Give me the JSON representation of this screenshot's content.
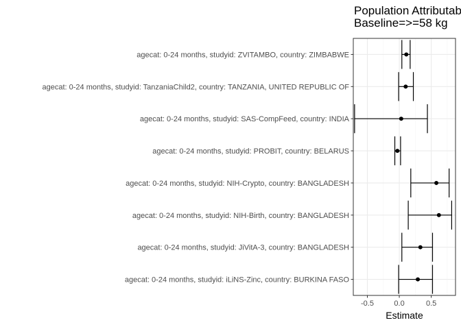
{
  "chart_data": {
    "type": "forest",
    "title_lines": [
      "Population Attributable",
      "Baseline=>=58 kg"
    ],
    "xlabel": "Estimate",
    "ylabel": "",
    "xlim": [
      -0.72,
      0.88
    ],
    "xticks": [
      -0.5,
      0.0,
      0.5
    ],
    "xtick_labels": [
      "-0.5",
      "0.0",
      "0.5"
    ],
    "grid": true,
    "colors": {
      "point": "#000000",
      "errorbar": "#000000",
      "grid_major": "#ebebeb",
      "grid_minor": "#f5f5f5",
      "panel_border": "#333333"
    },
    "categories": [
      "agecat: 0-24 months, studyid: ZVITAMBO, country: ZIMBABWE",
      "agecat: 0-24 months, studyid: TanzaniaChild2, country: TANZANIA, UNITED REPUBLIC OF",
      "agecat: 0-24 months, studyid: SAS-CompFeed, country: INDIA",
      "agecat: 0-24 months, studyid: PROBIT, country: BELARUS",
      "agecat: 0-24 months, studyid: NIH-Crypto, country: BANGLADESH",
      "agecat: 0-24 months, studyid: NIH-Birth, country: BANGLADESH",
      "agecat: 0-24 months, studyid: JiVitA-3, country: BANGLADESH",
      "agecat: 0-24 months, studyid: iLiNS-Zinc, country: BURKINA FASO"
    ],
    "estimate": [
      0.11,
      0.1,
      0.03,
      -0.03,
      0.58,
      0.62,
      0.33,
      0.29
    ],
    "lower": [
      0.04,
      -0.01,
      -0.7,
      -0.07,
      0.18,
      0.14,
      0.04,
      -0.01
    ],
    "upper": [
      0.17,
      0.22,
      0.44,
      0.02,
      0.78,
      0.82,
      0.52,
      0.52
    ]
  }
}
